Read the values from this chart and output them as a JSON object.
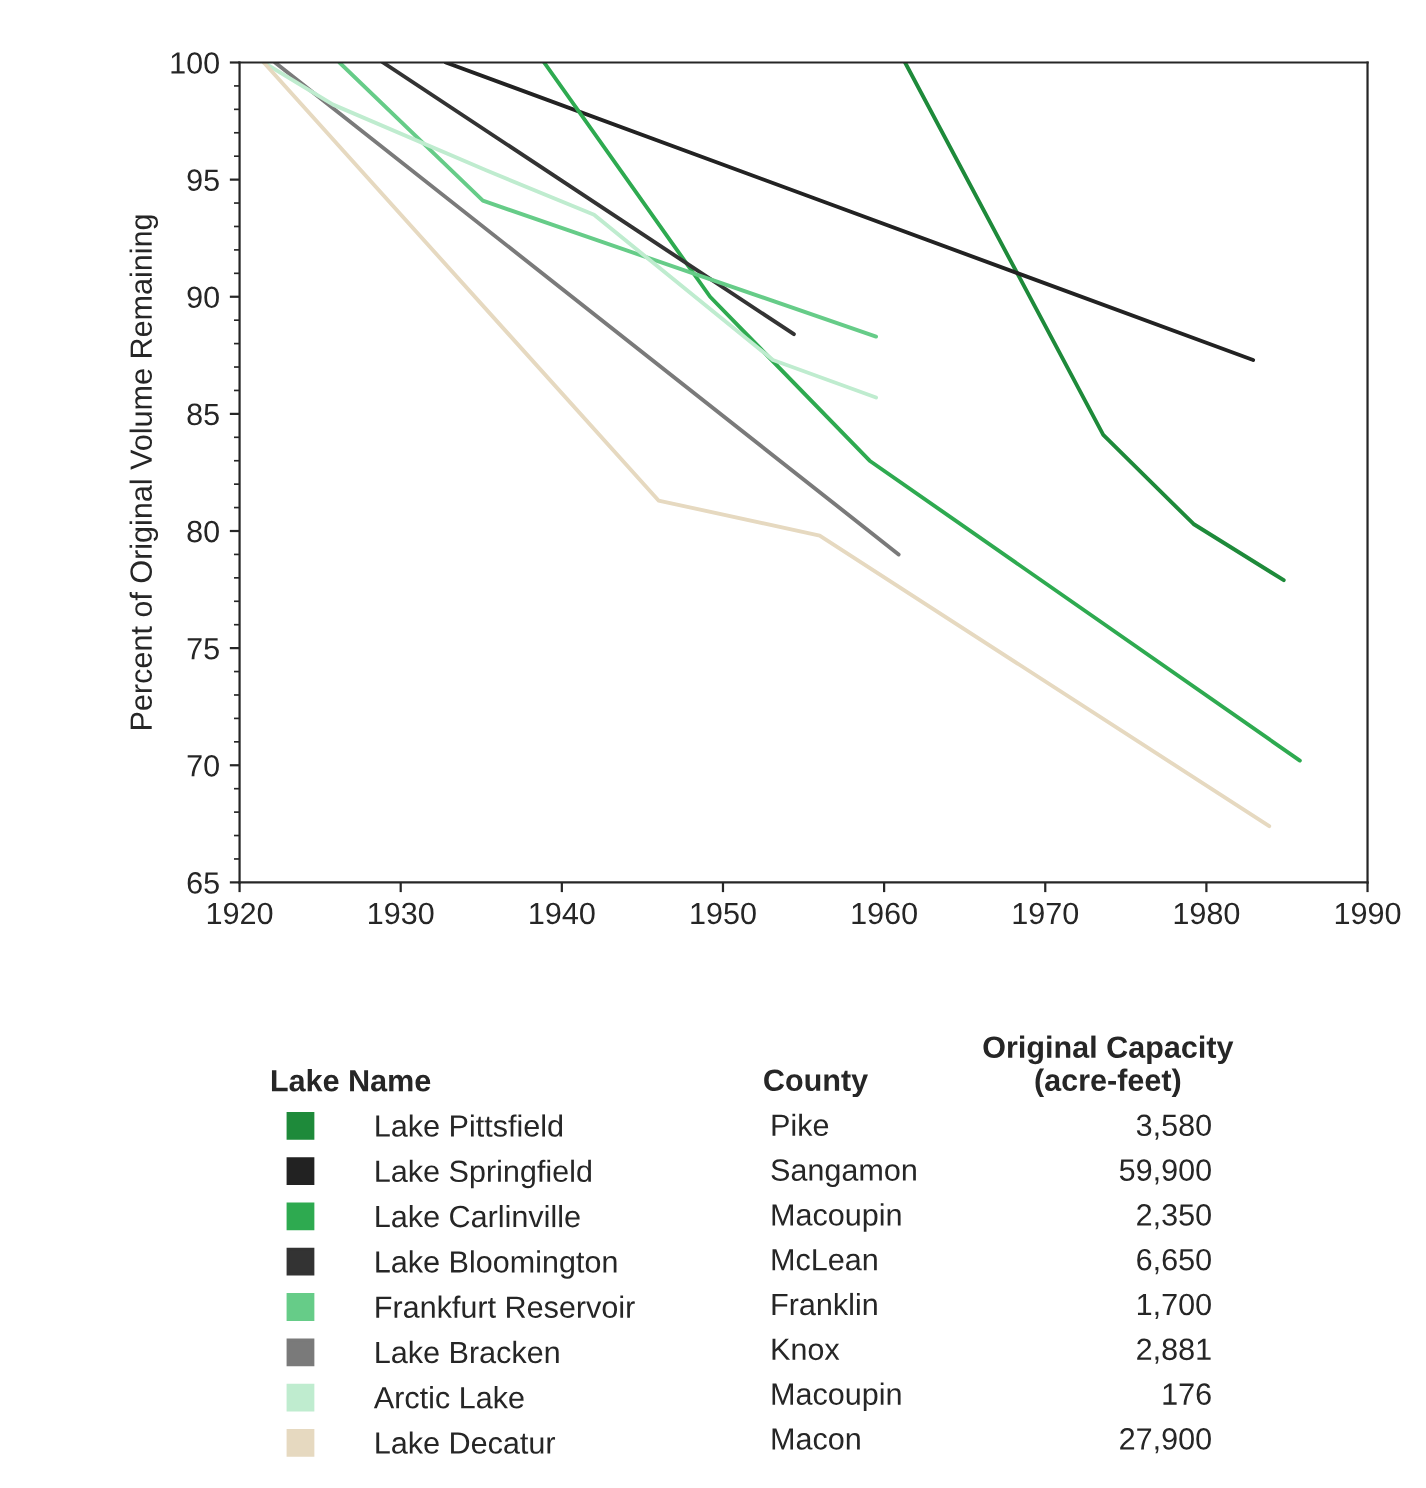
{
  "chart_data": {
    "type": "line",
    "ylabel": "Percent of Original Volume Remaining",
    "legend_title": "Lake Name",
    "legend": "bottom",
    "xlim": [
      1920,
      1990
    ],
    "xticks": [
      1920,
      1930,
      1940,
      1950,
      1960,
      1970,
      1980,
      1990
    ],
    "ylim": [
      65,
      100
    ],
    "yticks": [
      65,
      70,
      75,
      80,
      85,
      90,
      95,
      100
    ],
    "grid": false,
    "series": [
      {
        "name": "Lake Pittsfield",
        "color": "#1e8a3a",
        "x": [
          1961.3,
          1973.6,
          1979.2,
          1984.8
        ],
        "values": [
          100,
          84.1,
          80.3,
          77.9
        ]
      },
      {
        "name": "Lake Springfield",
        "color": "#222222",
        "x": [
          1932.8,
          1982.9
        ],
        "values": [
          100,
          87.3
        ]
      },
      {
        "name": "Lake Carlinville",
        "color": "#2eaa50",
        "x": [
          1938.9,
          1949.2,
          1959.1,
          1985.8
        ],
        "values": [
          100,
          90,
          83.0,
          70.2
        ]
      },
      {
        "name": "Lake Bloomington",
        "color": "#333333",
        "x": [
          1928.9,
          1954.4
        ],
        "values": [
          100,
          88.4
        ]
      },
      {
        "name": "Frankfurt Reservoir",
        "color": "#66cc88",
        "x": [
          1926.2,
          1935.1,
          1959.5
        ],
        "values": [
          100,
          94.1,
          88.3
        ]
      },
      {
        "name": "Lake Bracken",
        "color": "#7a7a7a",
        "x": [
          1922.2,
          1960.9
        ],
        "values": [
          100,
          79.0
        ]
      },
      {
        "name": "Arctic Lake",
        "color": "#bfeccf",
        "x": [
          1921.5,
          1925.8,
          1935.3,
          1942,
          1953.1,
          1959.5
        ],
        "values": [
          100,
          98.2,
          95.4,
          93.5,
          87.3,
          85.7
        ]
      },
      {
        "name": "Lake Decatur",
        "color": "#e6d9c0",
        "x": [
          1921.5,
          1946,
          1956,
          1983.9
        ],
        "values": [
          100,
          81.3,
          79.8,
          67.4
        ]
      }
    ],
    "annotations": [
      "County",
      "Original Capacity\n(acre-feet)",
      "Pike",
      "3,580",
      "Sangamon",
      "59,900",
      "Macoupin",
      "2,350",
      "McLean",
      "6,650",
      "Franklin",
      "1,700",
      "Knox",
      "2,881",
      "Macoupin",
      "176",
      "Macon",
      "27,900"
    ]
  }
}
